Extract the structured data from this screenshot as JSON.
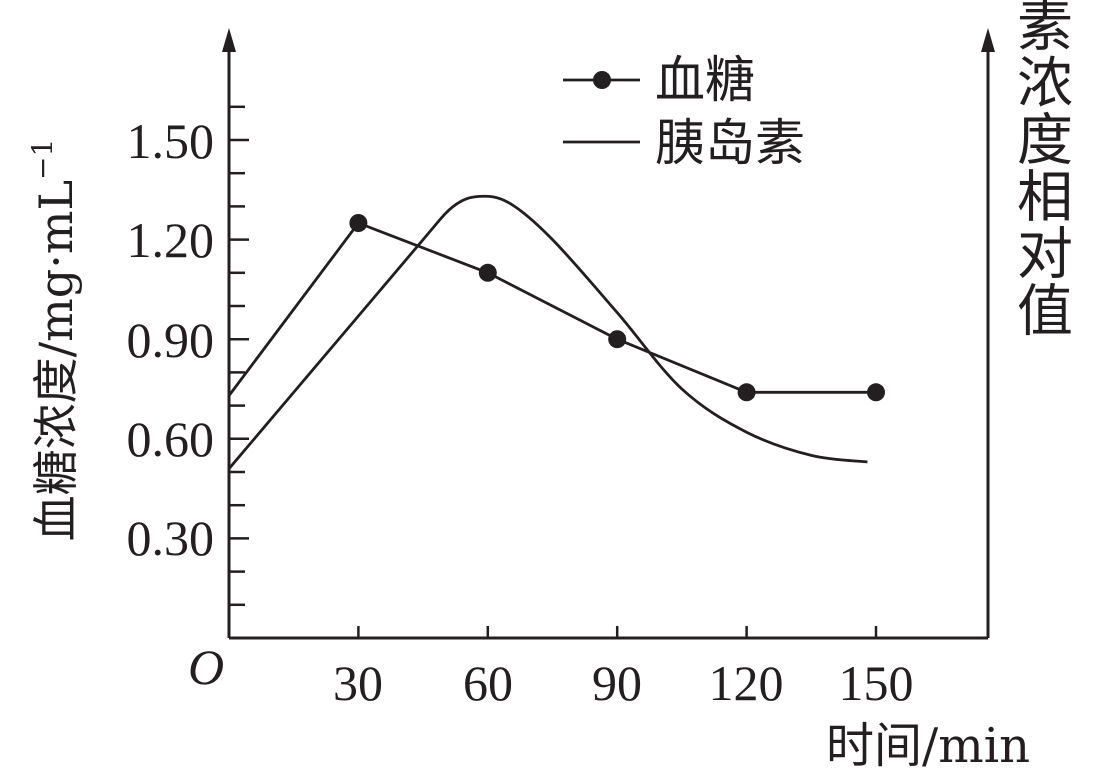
{
  "chart_data": {
    "type": "line",
    "x_unit_label": "时间/min",
    "origin_label": "O",
    "x_ticks": [
      "30",
      "60",
      "90",
      "120",
      "150"
    ],
    "x_range": [
      0,
      175
    ],
    "left_axis": {
      "label_main": "血糖浓度/mg·mL",
      "label_sup": "−1",
      "ticks": [
        "0.30",
        "0.60",
        "0.90",
        "1.20",
        "1.50"
      ],
      "range": [
        0,
        1.8
      ]
    },
    "right_axis": {
      "label": "胰岛素浓度相对值",
      "ticks_shown": false
    },
    "legend": {
      "position": "top-right",
      "items": [
        {
          "label": "血糖",
          "style": "line-with-dot"
        },
        {
          "label": "胰岛素",
          "style": "line"
        }
      ]
    },
    "series": [
      {
        "name": "血糖",
        "axis": "left",
        "marker": "dot",
        "x": [
          0,
          30,
          60,
          90,
          120,
          150
        ],
        "y": [
          0.73,
          1.25,
          1.1,
          0.9,
          0.74,
          0.74
        ],
        "markers_at": [
          30,
          60,
          90,
          120,
          150
        ]
      },
      {
        "name": "胰岛素",
        "axis": "left",
        "marker": "none",
        "x": [
          0,
          30,
          45,
          52,
          58,
          65,
          75,
          90,
          105,
          120,
          135,
          148
        ],
        "y": [
          0.51,
          0.97,
          1.2,
          1.3,
          1.33,
          1.31,
          1.2,
          0.98,
          0.75,
          0.62,
          0.55,
          0.53
        ]
      }
    ],
    "colors": {
      "ink": "#231f20",
      "background": "#ffffff"
    }
  }
}
